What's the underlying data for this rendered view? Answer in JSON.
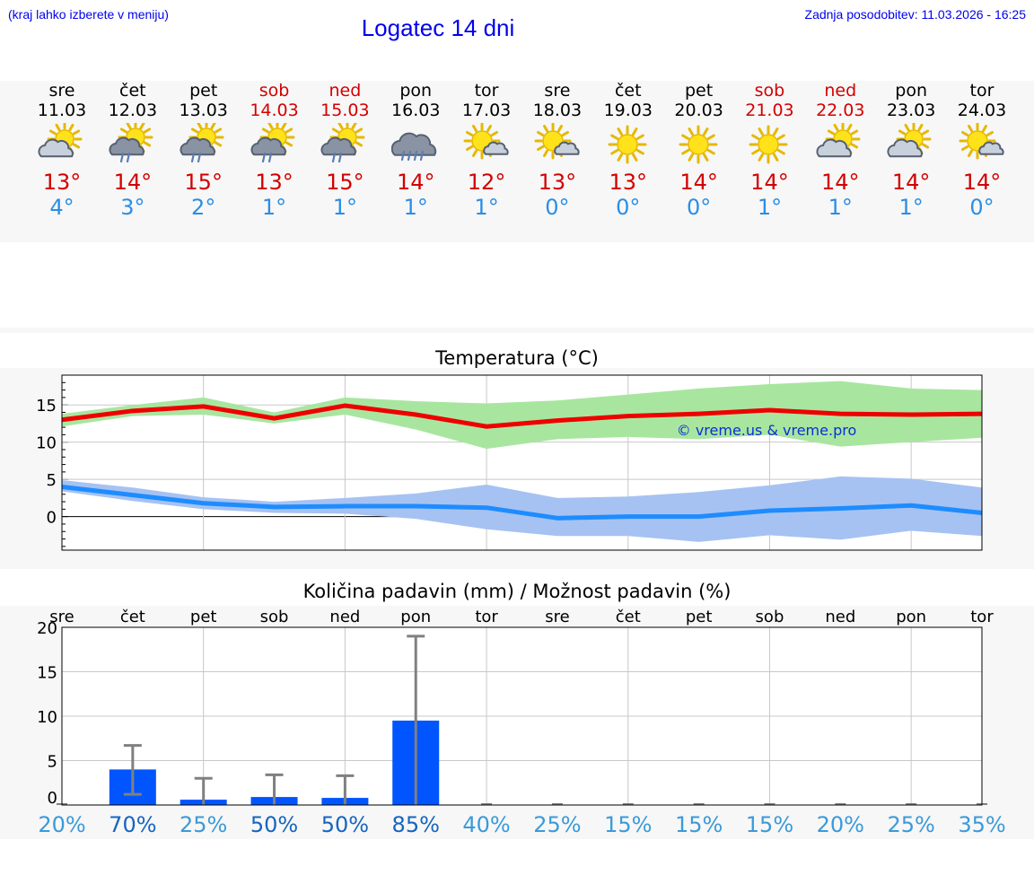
{
  "header": {
    "location_hint": "(kraj lahko izberete v meniju)",
    "title": "Logatec 14 dni",
    "updated": "Zadnja posodobitev: 11.03.2026 - 16:25"
  },
  "days": [
    {
      "name": "sre",
      "date": "11.03",
      "weekend": false,
      "icon": "partly-cloudy-icon",
      "tmax": "13°",
      "tmin": "4°"
    },
    {
      "name": "čet",
      "date": "12.03",
      "weekend": false,
      "icon": "sun-cloud-rain-icon",
      "tmax": "14°",
      "tmin": "3°"
    },
    {
      "name": "pet",
      "date": "13.03",
      "weekend": false,
      "icon": "sun-cloud-rain-icon",
      "tmax": "15°",
      "tmin": "2°"
    },
    {
      "name": "sob",
      "date": "14.03",
      "weekend": true,
      "icon": "sun-cloud-rain-icon",
      "tmax": "13°",
      "tmin": "1°"
    },
    {
      "name": "ned",
      "date": "15.03",
      "weekend": true,
      "icon": "sun-cloud-rain-icon",
      "tmax": "15°",
      "tmin": "1°"
    },
    {
      "name": "pon",
      "date": "16.03",
      "weekend": false,
      "icon": "cloud-rain-icon",
      "tmax": "14°",
      "tmin": "1°"
    },
    {
      "name": "tor",
      "date": "17.03",
      "weekend": false,
      "icon": "mostly-sunny-icon",
      "tmax": "12°",
      "tmin": "1°"
    },
    {
      "name": "sre",
      "date": "18.03",
      "weekend": false,
      "icon": "mostly-sunny-icon",
      "tmax": "13°",
      "tmin": "0°"
    },
    {
      "name": "čet",
      "date": "19.03",
      "weekend": false,
      "icon": "sun-icon",
      "tmax": "13°",
      "tmin": "0°"
    },
    {
      "name": "pet",
      "date": "20.03",
      "weekend": false,
      "icon": "sun-icon",
      "tmax": "14°",
      "tmin": "0°"
    },
    {
      "name": "sob",
      "date": "21.03",
      "weekend": true,
      "icon": "sun-icon",
      "tmax": "14°",
      "tmin": "1°"
    },
    {
      "name": "ned",
      "date": "22.03",
      "weekend": true,
      "icon": "partly-cloudy-icon",
      "tmax": "14°",
      "tmin": "1°"
    },
    {
      "name": "pon",
      "date": "23.03",
      "weekend": false,
      "icon": "partly-cloudy-icon",
      "tmax": "14°",
      "tmin": "1°"
    },
    {
      "name": "tor",
      "date": "24.03",
      "weekend": false,
      "icon": "mostly-sunny-icon",
      "tmax": "14°",
      "tmin": "0°"
    }
  ],
  "colors": {
    "max_line": "#ee0000",
    "max_band": "#a8e6a0",
    "min_line": "#1e8cff",
    "min_band": "#a6c2f2",
    "precip_bar": "#0055ff",
    "error_bar": "#808080",
    "prob_high": "#1565c0",
    "prob_low": "#3a9ad9"
  },
  "chart_data": [
    {
      "type": "line",
      "title": "Temperatura (°C)",
      "watermark": "© vreme.us & vreme.pro",
      "xlabel": "",
      "ylabel": "",
      "ylim": [
        -4.5,
        19
      ],
      "yticks": [
        0,
        5,
        10,
        15
      ],
      "grid": true,
      "series": [
        {
          "name": "max",
          "values": [
            13,
            14.2,
            14.8,
            13.2,
            14.9,
            13.7,
            12.1,
            12.9,
            13.5,
            13.8,
            14.3,
            13.8,
            13.7,
            13.8
          ],
          "band_high": [
            13.8,
            15.0,
            16.0,
            14.0,
            16.0,
            15.5,
            15.2,
            15.6,
            16.4,
            17.2,
            17.8,
            18.2,
            17.2,
            17.0
          ],
          "band_low": [
            12.1,
            13.5,
            13.7,
            12.5,
            13.7,
            11.7,
            9.1,
            10.4,
            10.7,
            10.4,
            11.0,
            9.4,
            10.0,
            10.6
          ]
        },
        {
          "name": "min",
          "values": [
            4.0,
            2.9,
            1.8,
            1.3,
            1.4,
            1.4,
            1.2,
            -0.2,
            0,
            0,
            0.8,
            1.1,
            1.5,
            0.5
          ],
          "band_high": [
            4.9,
            3.9,
            2.6,
            2.0,
            2.5,
            3.1,
            4.3,
            2.5,
            2.7,
            3.3,
            4.2,
            5.4,
            5.1,
            3.9
          ],
          "band_low": [
            3.4,
            2.1,
            1.0,
            0.5,
            0.4,
            -0.3,
            -1.7,
            -2.6,
            -2.6,
            -3.4,
            -2.5,
            -3.1,
            -1.9,
            -2.6
          ]
        }
      ]
    },
    {
      "type": "bar",
      "title": "Količina padavin (mm) / Možnost padavin (%)",
      "categories": [
        "sre",
        "čet",
        "pet",
        "sob",
        "ned",
        "pon",
        "tor",
        "sre",
        "čet",
        "pet",
        "sob",
        "ned",
        "pon",
        "tor"
      ],
      "values": [
        0,
        4.0,
        0.6,
        0.9,
        0.8,
        9.5,
        0,
        0,
        0,
        0,
        0,
        0,
        0,
        0
      ],
      "error_low": [
        0,
        1.2,
        0,
        0,
        0,
        0,
        0,
        0,
        0,
        0,
        0,
        0,
        0,
        0
      ],
      "error_high": [
        0,
        6.7,
        3.0,
        3.4,
        3.3,
        19.0,
        0,
        0,
        0,
        0,
        0,
        0,
        0,
        0
      ],
      "probability": [
        "20%",
        "70%",
        "25%",
        "50%",
        "50%",
        "85%",
        "40%",
        "25%",
        "15%",
        "15%",
        "15%",
        "20%",
        "25%",
        "35%"
      ],
      "probability_values": [
        20,
        70,
        25,
        50,
        50,
        85,
        40,
        25,
        15,
        15,
        15,
        20,
        25,
        35
      ],
      "ylim": [
        0,
        20
      ],
      "yticks": [
        0,
        5,
        10,
        15,
        20
      ],
      "xlabel": "",
      "ylabel": ""
    }
  ]
}
